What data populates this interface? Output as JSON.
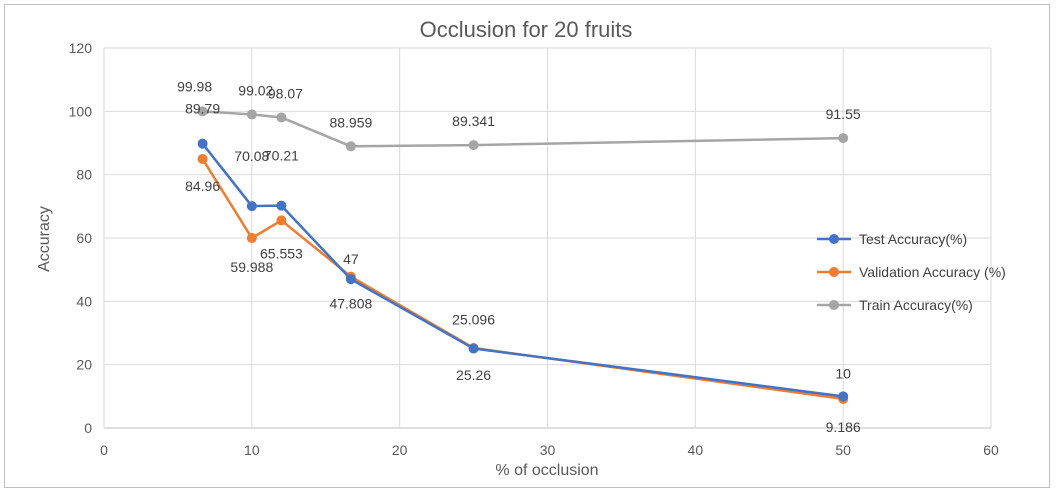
{
  "chart_data": {
    "type": "line",
    "title": "Occlusion for 20 fruits",
    "xlabel": "% of occlusion",
    "ylabel": "Accuracy",
    "xlim": [
      0,
      60
    ],
    "ylim": [
      0,
      120
    ],
    "x_ticks": [
      0,
      10,
      20,
      30,
      40,
      50,
      60
    ],
    "y_ticks": [
      0,
      20,
      40,
      60,
      80,
      100,
      120
    ],
    "grid": true,
    "legend_position": "right",
    "series": [
      {
        "name": "Test Accuracy(%)",
        "color": "#4472C4",
        "points": [
          {
            "x": 6.67,
            "y": 89.79,
            "label": "89.79"
          },
          {
            "x": 10,
            "y": 70.08,
            "label": "70.08"
          },
          {
            "x": 12,
            "y": 70.21,
            "label": "70.21"
          },
          {
            "x": 16.7,
            "y": 47,
            "label": "47"
          },
          {
            "x": 25,
            "y": 25.096,
            "label": "25.096"
          },
          {
            "x": 50,
            "y": 10,
            "label": "10"
          }
        ]
      },
      {
        "name": "Validation Accuracy (%)",
        "color": "#ED7D31",
        "points": [
          {
            "x": 6.67,
            "y": 84.96,
            "label": "84.96"
          },
          {
            "x": 10,
            "y": 59.988,
            "label": "59.988"
          },
          {
            "x": 12,
            "y": 65.553,
            "label": "65.553"
          },
          {
            "x": 16.7,
            "y": 47.808,
            "label": "47.808"
          },
          {
            "x": 25,
            "y": 25.26,
            "label": "25.26"
          },
          {
            "x": 50,
            "y": 9.186,
            "label": "9.186"
          }
        ]
      },
      {
        "name": "Train Accuracy(%)",
        "color": "#A5A5A5",
        "points": [
          {
            "x": 6.67,
            "y": 99.98,
            "label": "99.98"
          },
          {
            "x": 10,
            "y": 99.02,
            "label": "99.02"
          },
          {
            "x": 12,
            "y": 98.07,
            "label": "98.07"
          },
          {
            "x": 16.7,
            "y": 88.959,
            "label": "88.959"
          },
          {
            "x": 25,
            "y": 89.341,
            "label": "89.341"
          },
          {
            "x": 50,
            "y": 91.55,
            "label": "91.55"
          }
        ]
      }
    ]
  }
}
